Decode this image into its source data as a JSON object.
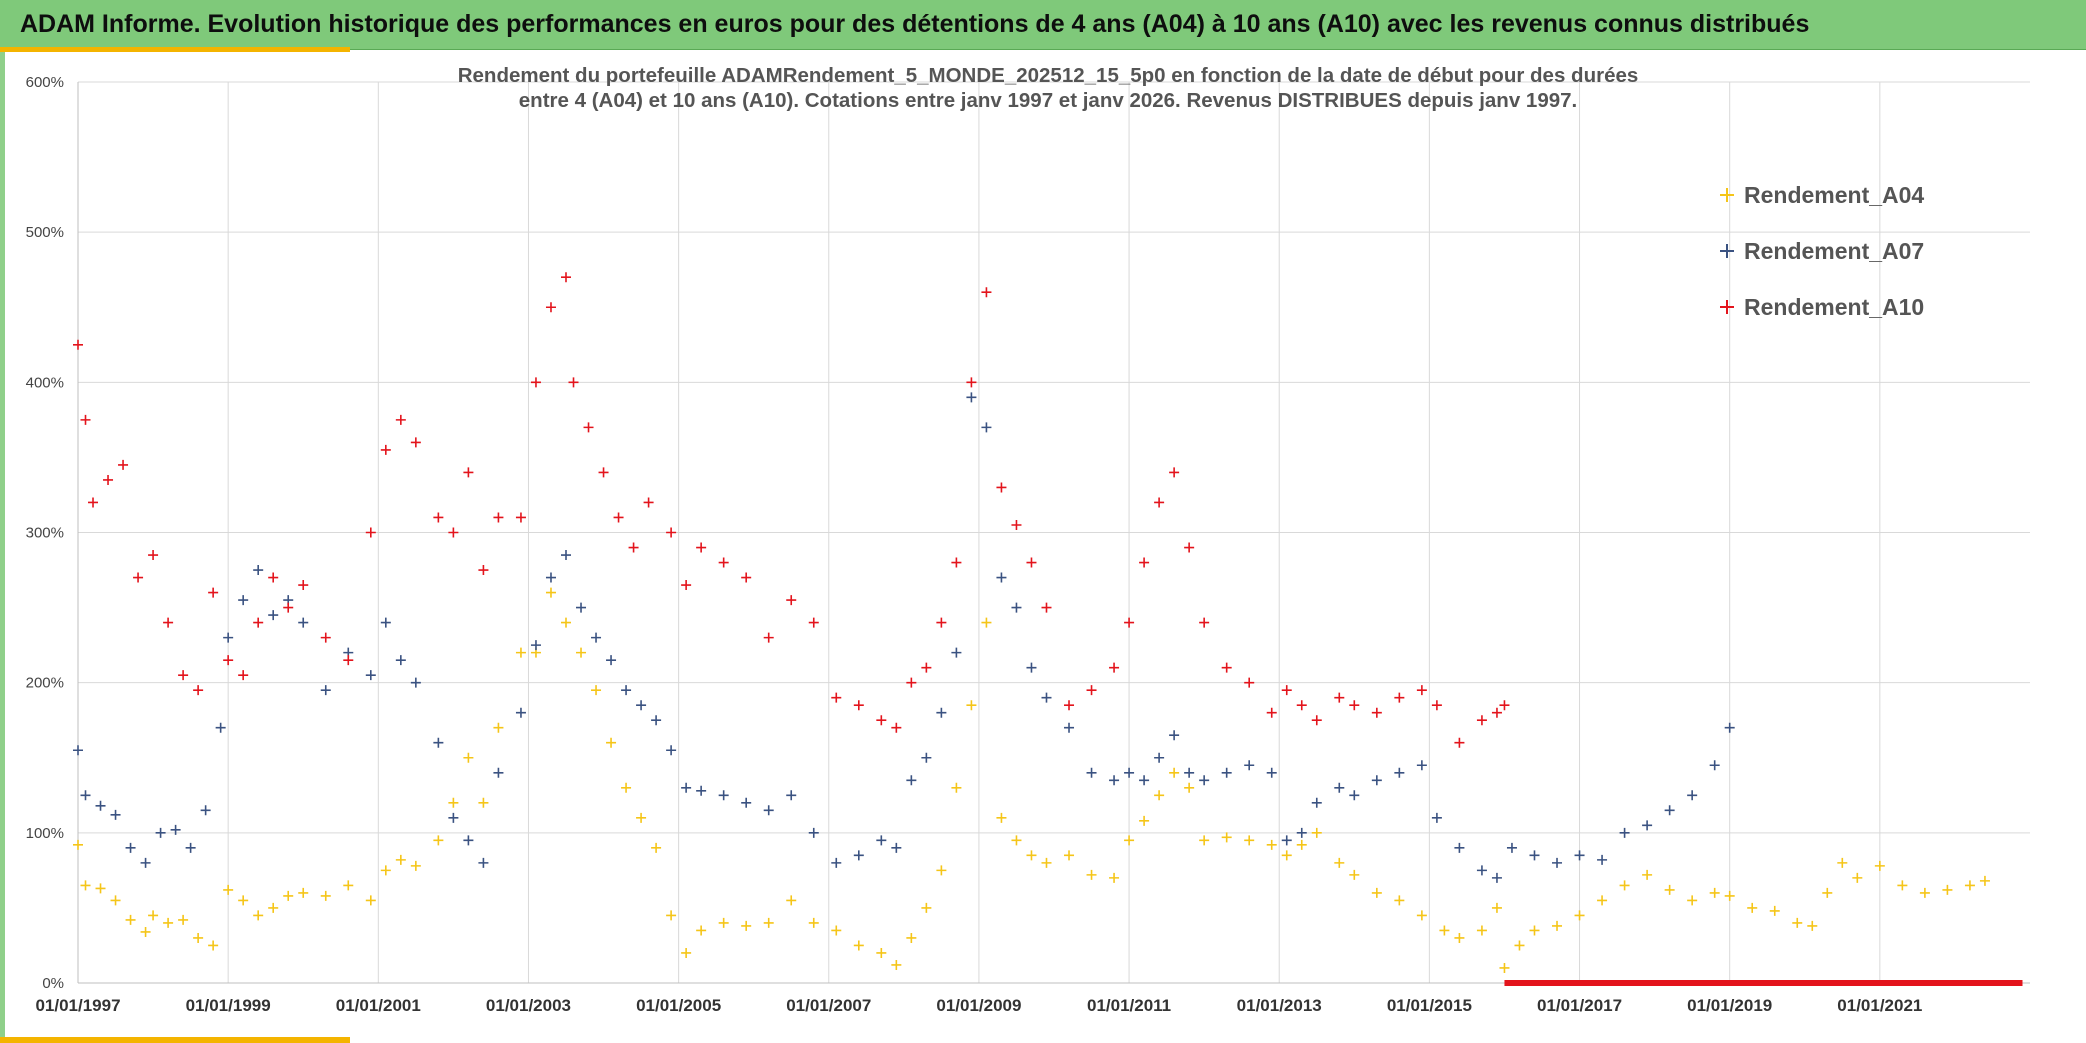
{
  "banner": {
    "title": "ADAM Informe. Evolution historique des performances en euros pour des détentions de 4 ans (A04) à 10 ans (A10) avec les revenus connus distribués"
  },
  "colors": {
    "banner_bg": "#7fc97a",
    "accent": "#f4b400",
    "A04": "#f5c518",
    "A07": "#3a5281",
    "A10": "#e3141c"
  },
  "chart_data": {
    "type": "scatter",
    "subtitle_lines": [
      "Rendement du portefeuille ADAMRendement_5_MONDE_202512_15_5p0  en fonction de la date de début pour des durées",
      "entre 4 (A04) et 10 ans (A10). Cotations entre janv 1997 et janv 2026. Revenus DISTRIBUES depuis janv 1997."
    ],
    "x_tick_labels": [
      "01/01/1997",
      "01/01/1999",
      "01/01/2001",
      "01/01/2003",
      "01/01/2005",
      "01/01/2007",
      "01/01/2009",
      "01/01/2011",
      "01/01/2013",
      "01/01/2015",
      "01/01/2017",
      "01/01/2019",
      "01/01/2021"
    ],
    "x_tick_years": [
      1997,
      1999,
      2001,
      2003,
      2005,
      2007,
      2009,
      2011,
      2013,
      2015,
      2017,
      2019,
      2021
    ],
    "xlim": [
      1997.0,
      2023.0
    ],
    "y_tick_labels": [
      "0%",
      "100%",
      "200%",
      "300%",
      "400%",
      "500%",
      "600%"
    ],
    "y_tick_values": [
      0,
      100,
      200,
      300,
      400,
      500,
      600
    ],
    "ylim": [
      0,
      600
    ],
    "grid": true,
    "legend_position": "top-right",
    "marker": "+",
    "series": [
      {
        "name": "Rendement_A04",
        "points": [
          [
            1997.0,
            92
          ],
          [
            1997.1,
            65
          ],
          [
            1997.3,
            63
          ],
          [
            1997.5,
            55
          ],
          [
            1997.7,
            42
          ],
          [
            1997.9,
            34
          ],
          [
            1998.0,
            45
          ],
          [
            1998.2,
            40
          ],
          [
            1998.4,
            42
          ],
          [
            1998.6,
            30
          ],
          [
            1998.8,
            25
          ],
          [
            1999.0,
            62
          ],
          [
            1999.2,
            55
          ],
          [
            1999.4,
            45
          ],
          [
            1999.6,
            50
          ],
          [
            1999.8,
            58
          ],
          [
            2000.0,
            60
          ],
          [
            2000.3,
            58
          ],
          [
            2000.6,
            65
          ],
          [
            2000.9,
            55
          ],
          [
            2001.1,
            75
          ],
          [
            2001.3,
            82
          ],
          [
            2001.5,
            78
          ],
          [
            2001.8,
            95
          ],
          [
            2002.0,
            120
          ],
          [
            2002.2,
            150
          ],
          [
            2002.4,
            120
          ],
          [
            2002.6,
            170
          ],
          [
            2002.9,
            220
          ],
          [
            2003.1,
            220
          ],
          [
            2003.3,
            260
          ],
          [
            2003.5,
            240
          ],
          [
            2003.7,
            220
          ],
          [
            2003.9,
            195
          ],
          [
            2004.1,
            160
          ],
          [
            2004.3,
            130
          ],
          [
            2004.5,
            110
          ],
          [
            2004.7,
            90
          ],
          [
            2004.9,
            45
          ],
          [
            2005.1,
            20
          ],
          [
            2005.3,
            35
          ],
          [
            2005.6,
            40
          ],
          [
            2005.9,
            38
          ],
          [
            2006.2,
            40
          ],
          [
            2006.5,
            55
          ],
          [
            2006.8,
            40
          ],
          [
            2007.1,
            35
          ],
          [
            2007.4,
            25
          ],
          [
            2007.7,
            20
          ],
          [
            2007.9,
            12
          ],
          [
            2008.1,
            30
          ],
          [
            2008.3,
            50
          ],
          [
            2008.5,
            75
          ],
          [
            2008.7,
            130
          ],
          [
            2008.9,
            185
          ],
          [
            2009.1,
            240
          ],
          [
            2009.3,
            110
          ],
          [
            2009.5,
            95
          ],
          [
            2009.7,
            85
          ],
          [
            2009.9,
            80
          ],
          [
            2010.2,
            85
          ],
          [
            2010.5,
            72
          ],
          [
            2010.8,
            70
          ],
          [
            2011.0,
            95
          ],
          [
            2011.2,
            108
          ],
          [
            2011.4,
            125
          ],
          [
            2011.6,
            140
          ],
          [
            2011.8,
            130
          ],
          [
            2012.0,
            95
          ],
          [
            2012.3,
            97
          ],
          [
            2012.6,
            95
          ],
          [
            2012.9,
            92
          ],
          [
            2013.1,
            85
          ],
          [
            2013.3,
            92
          ],
          [
            2013.5,
            100
          ],
          [
            2013.8,
            80
          ],
          [
            2014.0,
            72
          ],
          [
            2014.3,
            60
          ],
          [
            2014.6,
            55
          ],
          [
            2014.9,
            45
          ],
          [
            2015.2,
            35
          ],
          [
            2015.4,
            30
          ],
          [
            2015.7,
            35
          ],
          [
            2015.9,
            50
          ],
          [
            2016.0,
            10
          ],
          [
            2016.2,
            25
          ],
          [
            2016.4,
            35
          ],
          [
            2016.7,
            38
          ],
          [
            2017.0,
            45
          ],
          [
            2017.3,
            55
          ],
          [
            2017.6,
            65
          ],
          [
            2017.9,
            72
          ],
          [
            2018.2,
            62
          ],
          [
            2018.5,
            55
          ],
          [
            2018.8,
            60
          ],
          [
            2019.0,
            58
          ],
          [
            2019.3,
            50
          ],
          [
            2019.6,
            48
          ],
          [
            2019.9,
            40
          ],
          [
            2020.1,
            38
          ],
          [
            2020.3,
            60
          ],
          [
            2020.5,
            80
          ],
          [
            2020.7,
            70
          ],
          [
            2021.0,
            78
          ],
          [
            2021.3,
            65
          ],
          [
            2021.6,
            60
          ],
          [
            2021.9,
            62
          ],
          [
            2022.2,
            65
          ],
          [
            2022.4,
            68
          ]
        ]
      },
      {
        "name": "Rendement_A07",
        "points": [
          [
            1997.0,
            155
          ],
          [
            1997.1,
            125
          ],
          [
            1997.3,
            118
          ],
          [
            1997.5,
            112
          ],
          [
            1997.7,
            90
          ],
          [
            1997.9,
            80
          ],
          [
            1998.1,
            100
          ],
          [
            1998.3,
            102
          ],
          [
            1998.5,
            90
          ],
          [
            1998.7,
            115
          ],
          [
            1998.9,
            170
          ],
          [
            1999.0,
            230
          ],
          [
            1999.2,
            255
          ],
          [
            1999.4,
            275
          ],
          [
            1999.6,
            245
          ],
          [
            1999.8,
            255
          ],
          [
            2000.0,
            240
          ],
          [
            2000.3,
            195
          ],
          [
            2000.6,
            220
          ],
          [
            2000.9,
            205
          ],
          [
            2001.1,
            240
          ],
          [
            2001.3,
            215
          ],
          [
            2001.5,
            200
          ],
          [
            2001.8,
            160
          ],
          [
            2002.0,
            110
          ],
          [
            2002.2,
            95
          ],
          [
            2002.4,
            80
          ],
          [
            2002.6,
            140
          ],
          [
            2002.9,
            180
          ],
          [
            2003.1,
            225
          ],
          [
            2003.3,
            270
          ],
          [
            2003.5,
            285
          ],
          [
            2003.7,
            250
          ],
          [
            2003.9,
            230
          ],
          [
            2004.1,
            215
          ],
          [
            2004.3,
            195
          ],
          [
            2004.5,
            185
          ],
          [
            2004.7,
            175
          ],
          [
            2004.9,
            155
          ],
          [
            2005.1,
            130
          ],
          [
            2005.3,
            128
          ],
          [
            2005.6,
            125
          ],
          [
            2005.9,
            120
          ],
          [
            2006.2,
            115
          ],
          [
            2006.5,
            125
          ],
          [
            2006.8,
            100
          ],
          [
            2007.1,
            80
          ],
          [
            2007.4,
            85
          ],
          [
            2007.7,
            95
          ],
          [
            2007.9,
            90
          ],
          [
            2008.1,
            135
          ],
          [
            2008.3,
            150
          ],
          [
            2008.5,
            180
          ],
          [
            2008.7,
            220
          ],
          [
            2008.9,
            390
          ],
          [
            2009.1,
            370
          ],
          [
            2009.3,
            270
          ],
          [
            2009.5,
            250
          ],
          [
            2009.7,
            210
          ],
          [
            2009.9,
            190
          ],
          [
            2010.2,
            170
          ],
          [
            2010.5,
            140
          ],
          [
            2010.8,
            135
          ],
          [
            2011.0,
            140
          ],
          [
            2011.2,
            135
          ],
          [
            2011.4,
            150
          ],
          [
            2011.6,
            165
          ],
          [
            2011.8,
            140
          ],
          [
            2012.0,
            135
          ],
          [
            2012.3,
            140
          ],
          [
            2012.6,
            145
          ],
          [
            2012.9,
            140
          ],
          [
            2013.1,
            95
          ],
          [
            2013.3,
            100
          ],
          [
            2013.5,
            120
          ],
          [
            2013.8,
            130
          ],
          [
            2014.0,
            125
          ],
          [
            2014.3,
            135
          ],
          [
            2014.6,
            140
          ],
          [
            2014.9,
            145
          ],
          [
            2015.1,
            110
          ],
          [
            2015.4,
            90
          ],
          [
            2015.7,
            75
          ],
          [
            2015.9,
            70
          ],
          [
            2016.1,
            90
          ],
          [
            2016.4,
            85
          ],
          [
            2016.7,
            80
          ],
          [
            2017.0,
            85
          ],
          [
            2017.3,
            82
          ],
          [
            2017.6,
            100
          ],
          [
            2017.9,
            105
          ],
          [
            2018.2,
            115
          ],
          [
            2018.5,
            125
          ],
          [
            2018.8,
            145
          ],
          [
            2019.0,
            170
          ]
        ]
      },
      {
        "name": "Rendement_A10",
        "points": [
          [
            1997.0,
            425
          ],
          [
            1997.1,
            375
          ],
          [
            1997.2,
            320
          ],
          [
            1997.4,
            335
          ],
          [
            1997.6,
            345
          ],
          [
            1997.8,
            270
          ],
          [
            2000.0,
            265
          ],
          [
            1998.0,
            285
          ],
          [
            1998.2,
            240
          ],
          [
            1998.4,
            205
          ],
          [
            1998.6,
            195
          ],
          [
            1998.8,
            260
          ],
          [
            1999.0,
            215
          ],
          [
            1999.2,
            205
          ],
          [
            1999.4,
            240
          ],
          [
            1999.6,
            270
          ],
          [
            1999.8,
            250
          ],
          [
            2000.3,
            230
          ],
          [
            2000.6,
            215
          ],
          [
            2000.9,
            300
          ],
          [
            2001.1,
            355
          ],
          [
            2001.3,
            375
          ],
          [
            2001.5,
            360
          ],
          [
            2001.8,
            310
          ],
          [
            2002.0,
            300
          ],
          [
            2002.2,
            340
          ],
          [
            2002.4,
            275
          ],
          [
            2002.6,
            310
          ],
          [
            2002.9,
            310
          ],
          [
            2003.1,
            400
          ],
          [
            2003.3,
            450
          ],
          [
            2003.5,
            470
          ],
          [
            2003.6,
            400
          ],
          [
            2003.8,
            370
          ],
          [
            2004.0,
            340
          ],
          [
            2004.2,
            310
          ],
          [
            2004.4,
            290
          ],
          [
            2004.6,
            320
          ],
          [
            2004.9,
            300
          ],
          [
            2005.1,
            265
          ],
          [
            2005.3,
            290
          ],
          [
            2005.6,
            280
          ],
          [
            2005.9,
            270
          ],
          [
            2006.2,
            230
          ],
          [
            2006.5,
            255
          ],
          [
            2006.8,
            240
          ],
          [
            2007.1,
            190
          ],
          [
            2007.4,
            185
          ],
          [
            2007.7,
            175
          ],
          [
            2007.9,
            170
          ],
          [
            2008.1,
            200
          ],
          [
            2008.3,
            210
          ],
          [
            2008.5,
            240
          ],
          [
            2008.7,
            280
          ],
          [
            2008.9,
            400
          ],
          [
            2009.1,
            460
          ],
          [
            2009.3,
            330
          ],
          [
            2009.5,
            305
          ],
          [
            2009.7,
            280
          ],
          [
            2009.9,
            250
          ],
          [
            2010.2,
            185
          ],
          [
            2010.5,
            195
          ],
          [
            2010.8,
            210
          ],
          [
            2011.0,
            240
          ],
          [
            2011.2,
            280
          ],
          [
            2011.4,
            320
          ],
          [
            2011.6,
            340
          ],
          [
            2011.8,
            290
          ],
          [
            2012.0,
            240
          ],
          [
            2012.3,
            210
          ],
          [
            2012.6,
            200
          ],
          [
            2012.9,
            180
          ],
          [
            2013.1,
            195
          ],
          [
            2013.3,
            185
          ],
          [
            2013.5,
            175
          ],
          [
            2013.8,
            190
          ],
          [
            2014.0,
            185
          ],
          [
            2014.3,
            180
          ],
          [
            2014.6,
            190
          ],
          [
            2014.9,
            195
          ],
          [
            2015.1,
            185
          ],
          [
            2015.4,
            160
          ],
          [
            2015.7,
            175
          ],
          [
            2015.9,
            180
          ],
          [
            2016.0,
            185
          ]
        ]
      }
    ],
    "baseline_band": {
      "x_from": 2016.0,
      "x_to": 2022.9,
      "y": 0,
      "color": "#e3141c"
    }
  }
}
